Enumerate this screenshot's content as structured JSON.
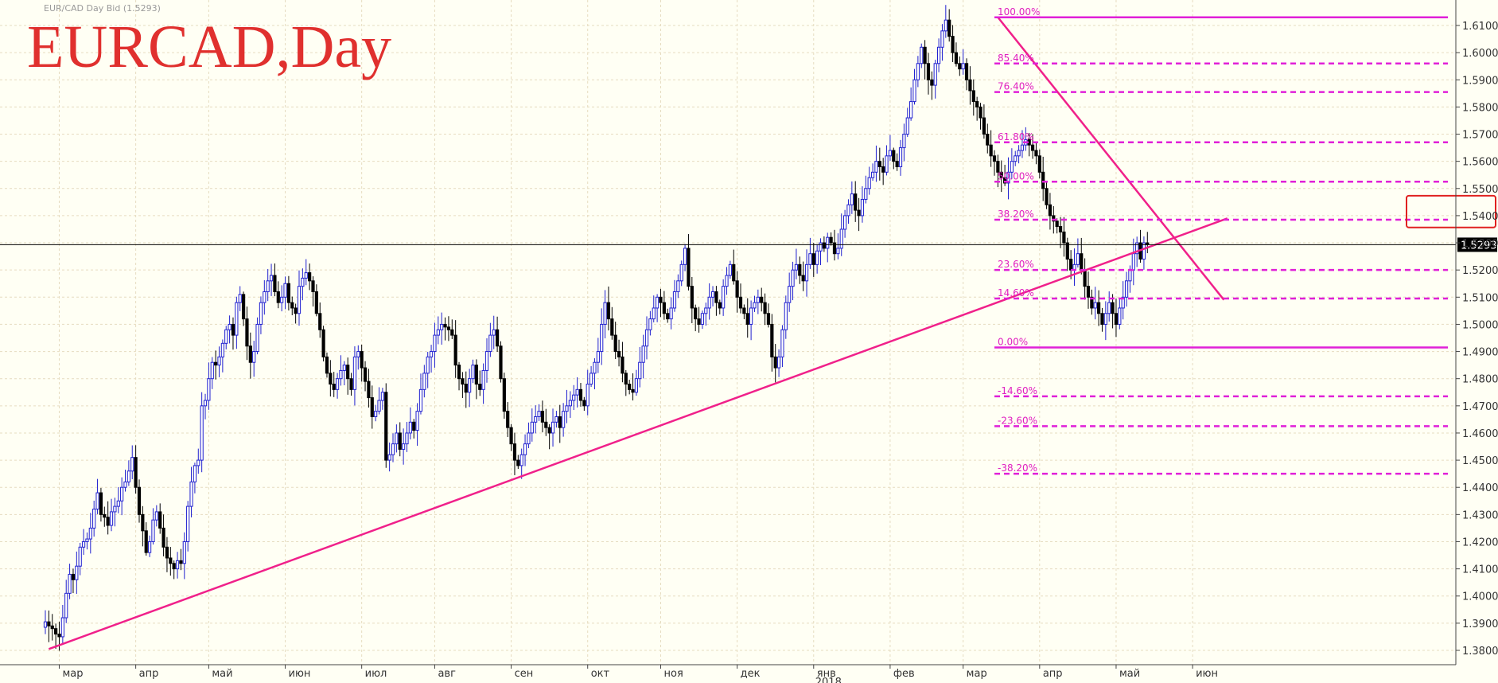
{
  "header": {
    "symbol_title": "EURCAD,Day",
    "small_title": "EUR/CAD Day Bid (1.5293)"
  },
  "colors": {
    "background": "#fffff4",
    "bull": "#2020d0",
    "bear": "#000000",
    "trend": "#f0208a",
    "fib": "#e020d8",
    "title": "#e0302e",
    "highlight": "#e02020"
  },
  "chart_data": {
    "type": "candlestick",
    "title": "EURCAD,Day",
    "subtitle": "EUR/CAD Day Bid (1.5293)",
    "ylim": [
      1.375,
      1.615
    ],
    "y_ticks": [
      "1.3800",
      "1.3900",
      "1.4000",
      "1.4100",
      "1.4200",
      "1.4300",
      "1.4400",
      "1.4500",
      "1.4600",
      "1.4700",
      "1.4800",
      "1.4900",
      "1.5000",
      "1.5100",
      "1.5200",
      "1.5300",
      "1.5400",
      "1.5500",
      "1.5600",
      "1.5700",
      "1.5800",
      "1.5900",
      "1.6000",
      "1.6100"
    ],
    "x_months": [
      "мар",
      "апр",
      "май",
      "июн",
      "июл",
      "авг",
      "сен",
      "окт",
      "ноя",
      "дек",
      "янв",
      "фев",
      "мар",
      "апр",
      "май",
      "июн"
    ],
    "year_label": "2018",
    "year_label_month": 10,
    "last_price": "1.5293",
    "closes": [
      1.3905,
      1.389,
      1.388,
      1.386,
      1.385,
      1.392,
      1.401,
      1.408,
      1.406,
      1.411,
      1.418,
      1.42,
      1.421,
      1.425,
      1.432,
      1.438,
      1.43,
      1.429,
      1.426,
      1.431,
      1.433,
      1.435,
      1.44,
      1.442,
      1.446,
      1.451,
      1.44,
      1.43,
      1.424,
      1.416,
      1.42,
      1.428,
      1.431,
      1.425,
      1.418,
      1.414,
      1.412,
      1.41,
      1.413,
      1.412,
      1.42,
      1.433,
      1.442,
      1.448,
      1.45,
      1.47,
      1.472,
      1.48,
      1.486,
      1.485,
      1.488,
      1.493,
      1.498,
      1.5,
      1.496,
      1.508,
      1.511,
      1.502,
      1.492,
      1.486,
      1.49,
      1.5,
      1.508,
      1.512,
      1.516,
      1.518,
      1.512,
      1.508,
      1.51,
      1.515,
      1.508,
      1.506,
      1.504,
      1.514,
      1.517,
      1.519,
      1.516,
      1.512,
      1.504,
      1.498,
      1.488,
      1.482,
      1.478,
      1.476,
      1.48,
      1.483,
      1.485,
      1.48,
      1.476,
      1.488,
      1.49,
      1.484,
      1.479,
      1.473,
      1.466,
      1.468,
      1.472,
      1.475,
      1.45,
      1.452,
      1.456,
      1.46,
      1.454,
      1.456,
      1.46,
      1.464,
      1.461,
      1.468,
      1.476,
      1.482,
      1.488,
      1.49,
      1.496,
      1.498,
      1.5,
      1.499,
      1.498,
      1.496,
      1.485,
      1.48,
      1.478,
      1.475,
      1.48,
      1.485,
      1.478,
      1.476,
      1.483,
      1.49,
      1.496,
      1.498,
      1.492,
      1.48,
      1.468,
      1.462,
      1.456,
      1.45,
      1.448,
      1.452,
      1.456,
      1.46,
      1.464,
      1.466,
      1.468,
      1.464,
      1.462,
      1.46,
      1.464,
      1.466,
      1.462,
      1.468,
      1.47,
      1.472,
      1.474,
      1.476,
      1.472,
      1.47,
      1.478,
      1.482,
      1.486,
      1.49,
      1.5,
      1.508,
      1.502,
      1.496,
      1.49,
      1.488,
      1.482,
      1.478,
      1.476,
      1.475,
      1.48,
      1.486,
      1.492,
      1.498,
      1.502,
      1.506,
      1.51,
      1.508,
      1.504,
      1.502,
      1.506,
      1.512,
      1.516,
      1.522,
      1.528,
      1.514,
      1.506,
      1.502,
      1.5,
      1.504,
      1.506,
      1.51,
      1.512,
      1.508,
      1.506,
      1.514,
      1.518,
      1.522,
      1.516,
      1.51,
      1.506,
      1.504,
      1.5,
      1.506,
      1.508,
      1.51,
      1.508,
      1.504,
      1.5,
      1.488,
      1.484,
      1.488,
      1.498,
      1.508,
      1.514,
      1.52,
      1.522,
      1.518,
      1.516,
      1.522,
      1.526,
      1.522,
      1.527,
      1.53,
      1.528,
      1.532,
      1.53,
      1.526,
      1.528,
      1.535,
      1.54,
      1.544,
      1.548,
      1.542,
      1.54,
      1.546,
      1.55,
      1.554,
      1.556,
      1.56,
      1.558,
      1.556,
      1.562,
      1.564,
      1.56,
      1.558,
      1.565,
      1.57,
      1.576,
      1.582,
      1.59,
      1.596,
      1.602,
      1.596,
      1.59,
      1.588,
      1.596,
      1.602,
      1.608,
      1.612,
      1.606,
      1.6,
      1.596,
      1.594,
      1.596,
      1.59,
      1.586,
      1.582,
      1.58,
      1.576,
      1.57,
      1.566,
      1.562,
      1.56,
      1.556,
      1.554,
      1.552,
      1.556,
      1.56,
      1.562,
      1.564,
      1.566,
      1.568,
      1.566,
      1.564,
      1.562,
      1.556,
      1.55,
      1.544,
      1.54,
      1.538,
      1.536,
      1.534,
      1.53,
      1.524,
      1.52,
      1.522,
      1.526,
      1.52,
      1.514,
      1.51,
      1.506,
      1.508,
      1.504,
      1.5,
      1.504,
      1.508,
      1.504,
      1.5,
      1.506,
      1.51,
      1.516,
      1.52,
      1.526,
      1.53,
      1.524,
      1.53,
      1.5293
    ],
    "trend_lines": [
      {
        "from": [
          1,
          1.3805
        ],
        "to": [
          340,
          1.539
        ]
      },
      {
        "from": [
          274,
          1.613
        ],
        "to": [
          339,
          1.509
        ]
      }
    ],
    "fibonacci": {
      "x_start": 273,
      "levels": [
        {
          "label": "100.00%",
          "price": 1.613,
          "solid": true
        },
        {
          "label": "85.40%",
          "price": 1.596,
          "solid": false
        },
        {
          "label": "76.40%",
          "price": 1.5855,
          "solid": false
        },
        {
          "label": "61.80%",
          "price": 1.567,
          "solid": false
        },
        {
          "label": "50.00%",
          "price": 1.5525,
          "solid": false
        },
        {
          "label": "38.20%",
          "price": 1.5385,
          "solid": false
        },
        {
          "label": "23.60%",
          "price": 1.52,
          "solid": false
        },
        {
          "label": "14.60%",
          "price": 1.5095,
          "solid": false
        },
        {
          "label": "0.00%",
          "price": 1.4915,
          "solid": true
        },
        {
          "label": "-14.60%",
          "price": 1.4735,
          "solid": false
        },
        {
          "label": "-23.60%",
          "price": 1.4625,
          "solid": false
        },
        {
          "label": "-38.20%",
          "price": 1.445,
          "solid": false
        }
      ]
    },
    "highlight_zone": {
      "price_low": 1.538,
      "price_high": 1.545
    },
    "grid": true
  }
}
